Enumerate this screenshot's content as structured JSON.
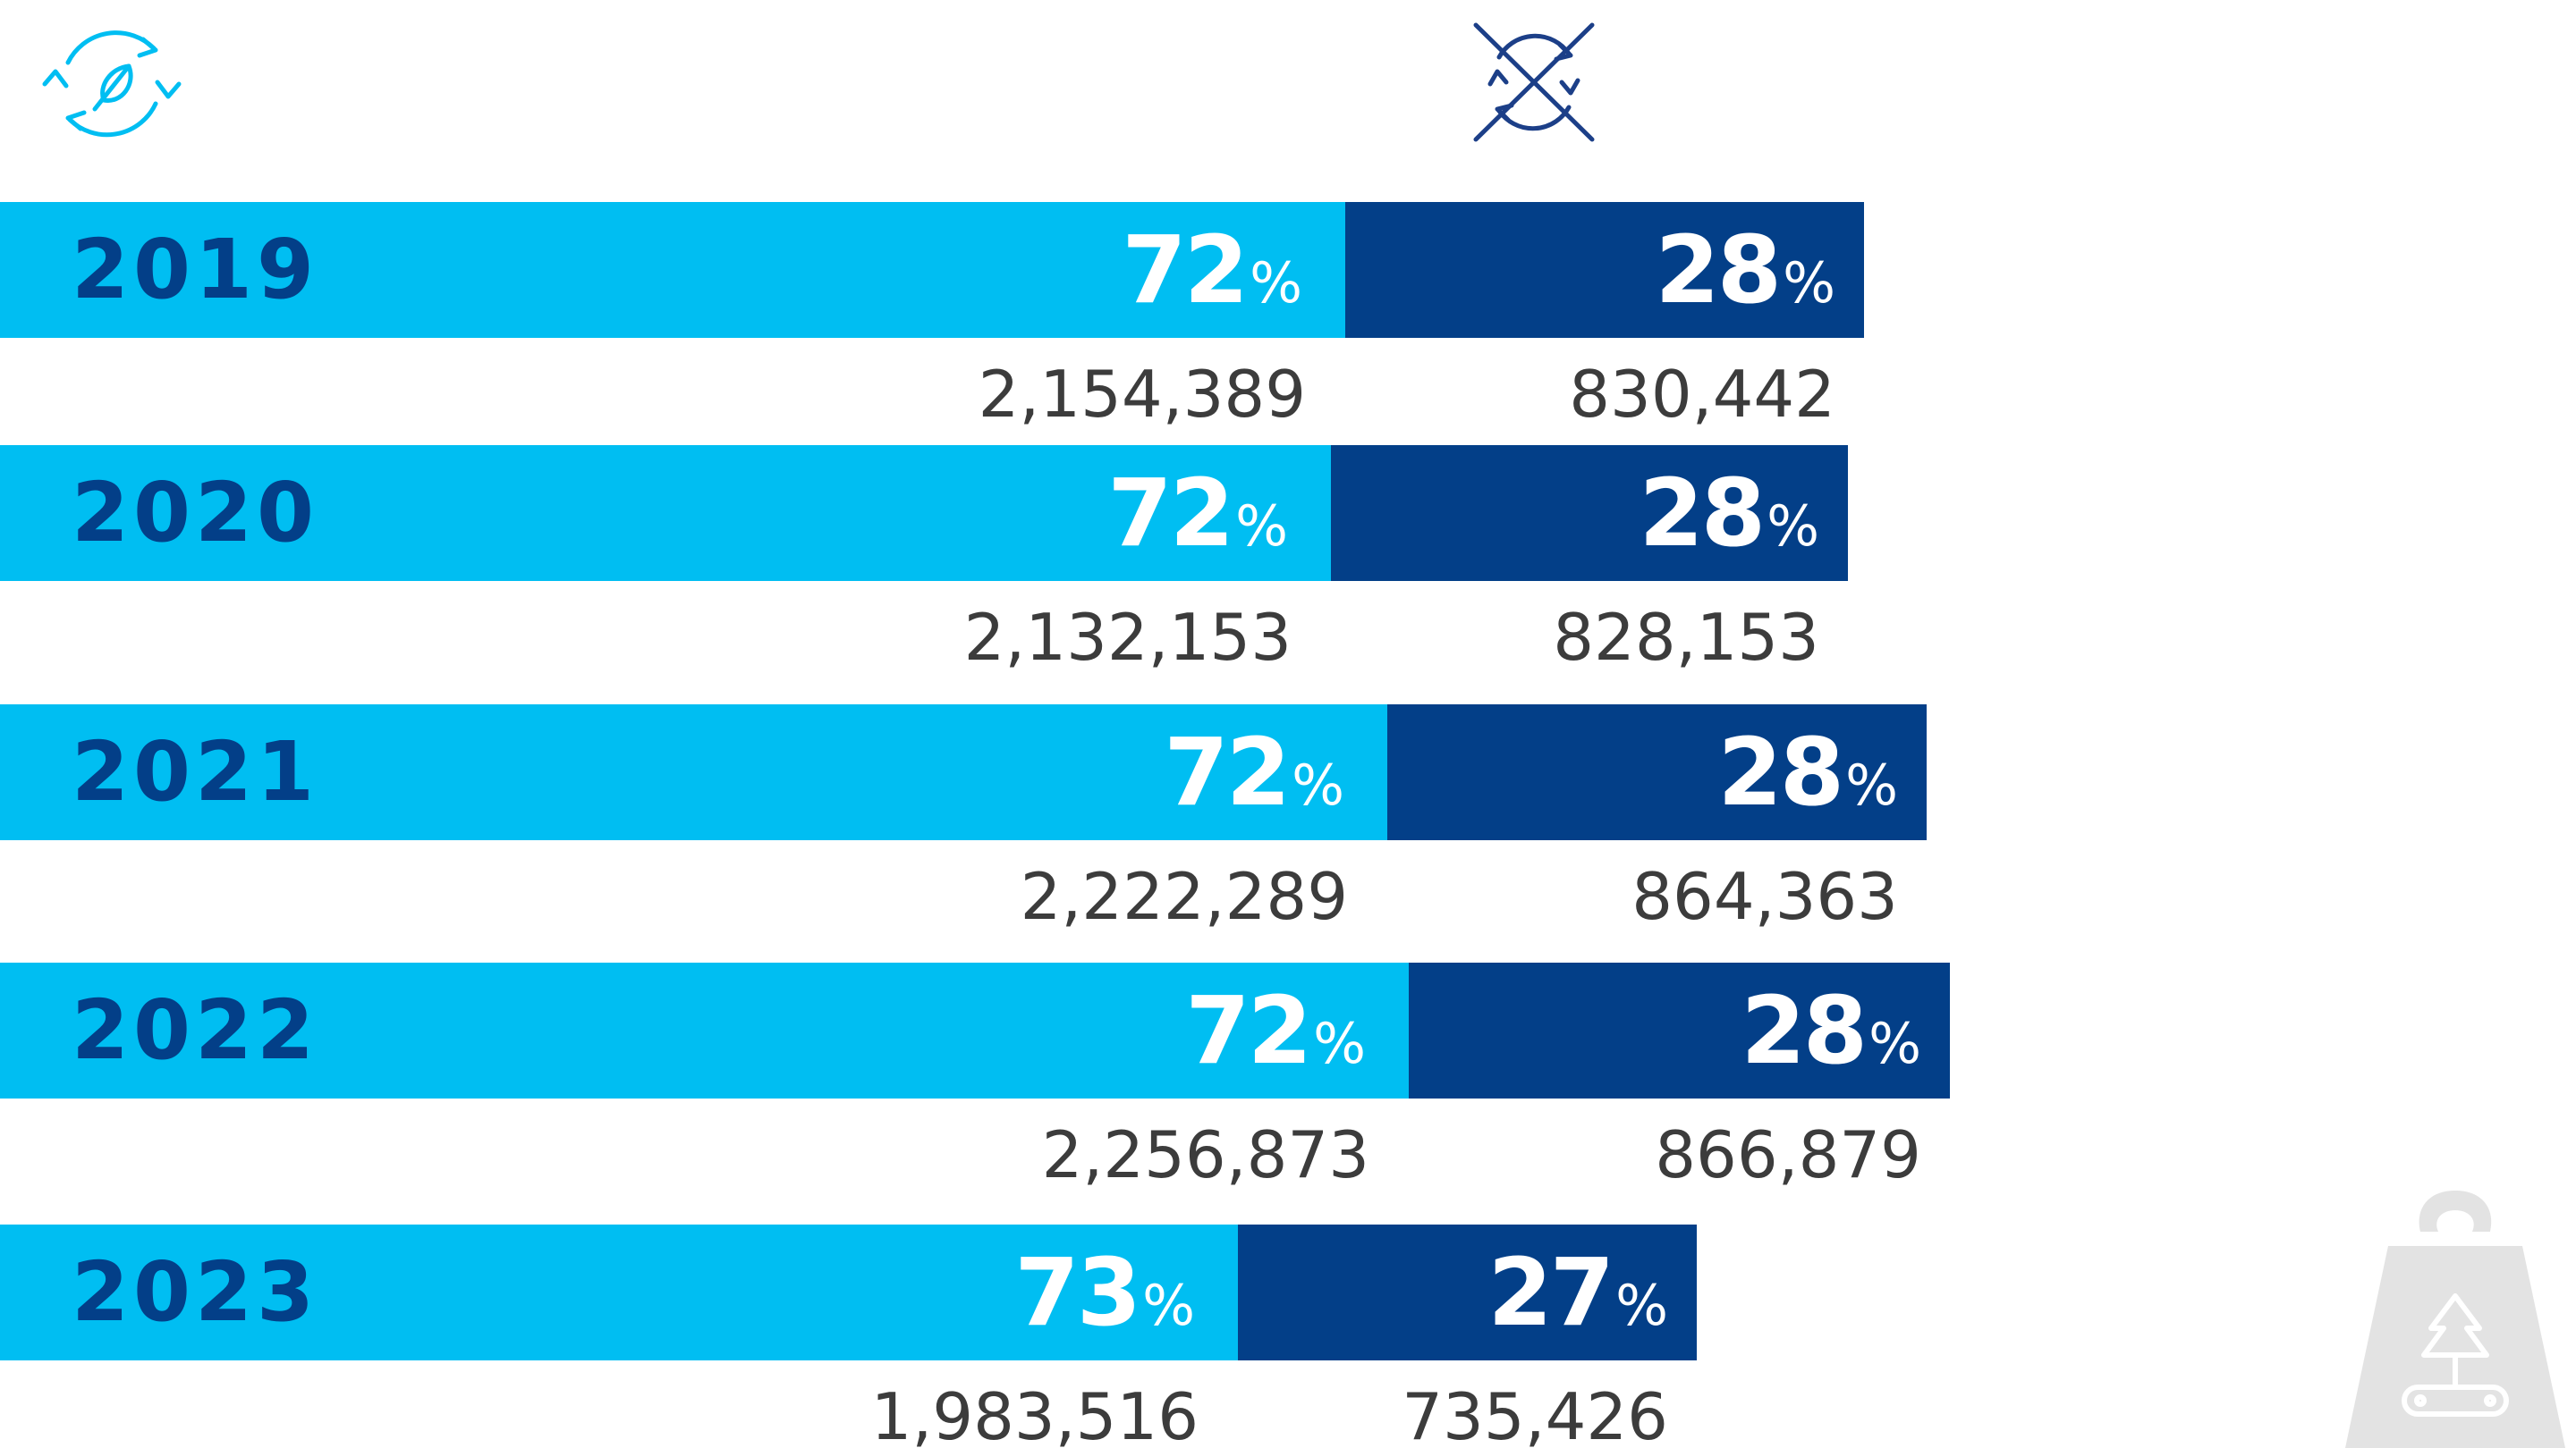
{
  "colors": {
    "recycled": "#00BEF2",
    "non_recycled": "#033F88",
    "year_text": "#033F88",
    "value_text": "#3C3C3C",
    "icon_light": "#00BEF2",
    "icon_dark": "#1C3F88",
    "weight_icon": "#E3E3E3"
  },
  "legend": {
    "left_icon": "recycle-leaf-icon",
    "right_icon": "recycle-crossed-icon",
    "corner_icon": "weight-tree-icon"
  },
  "chart_data": {
    "type": "bar",
    "orientation": "horizontal",
    "stacked": true,
    "categories": [
      "2019",
      "2020",
      "2021",
      "2022",
      "2023"
    ],
    "series": [
      {
        "name": "recycled",
        "percent_values": [
          72,
          72,
          72,
          72,
          73
        ],
        "absolute_values": [
          2154389,
          2132153,
          2222289,
          2256873,
          1983516
        ]
      },
      {
        "name": "non-recycled",
        "percent_values": [
          28,
          28,
          28,
          28,
          27
        ],
        "absolute_values": [
          830442,
          828153,
          864363,
          866879,
          735426
        ]
      }
    ],
    "percent_labels": [
      [
        "72",
        "28"
      ],
      [
        "72",
        "28"
      ],
      [
        "72",
        "28"
      ],
      [
        "72",
        "28"
      ],
      [
        "73",
        "27"
      ]
    ],
    "value_labels": [
      [
        "2,154,389",
        "830,442"
      ],
      [
        "2,132,153",
        "828,153"
      ],
      [
        "2,222,289",
        "864,363"
      ],
      [
        "2,256,873",
        "866,879"
      ],
      [
        "1,983,516",
        "735,426"
      ]
    ],
    "percent_sign": "%",
    "title": "",
    "xlabel": "",
    "ylabel": "",
    "grid": false
  }
}
